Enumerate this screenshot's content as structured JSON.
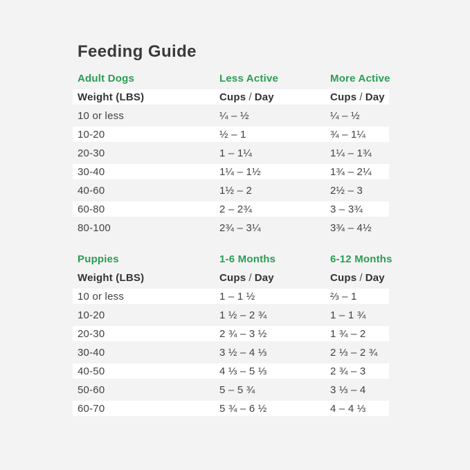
{
  "page": {
    "title": "Feeding Guide"
  },
  "labels": {
    "weight": "Weight (LBS)",
    "cups": "Cups",
    "slash": "/",
    "day": "Day"
  },
  "colors": {
    "accent_green": "#2a9d52",
    "title_text": "#3a3a3a",
    "body_text": "#414141",
    "page_background": "#f3f3f4",
    "stripe_white": "#ffffff"
  },
  "sections": [
    {
      "name": "Adult Dogs",
      "columns": [
        "Adult Dogs",
        "Less Active",
        "More Active"
      ],
      "rows": [
        [
          "10 or less",
          "¼ – ½",
          "¼ – ½"
        ],
        [
          "10-20",
          "½ – 1",
          "¾ – 1¼"
        ],
        [
          "20-30",
          "1 – 1¼",
          "1¼ – 1¾"
        ],
        [
          "30-40",
          "1¼ – 1½",
          "1¾ – 2¼"
        ],
        [
          "40-60",
          "1½ – 2",
          "2½ – 3"
        ],
        [
          "60-80",
          "2 – 2¾",
          "3 – 3¾"
        ],
        [
          "80-100",
          "2¾ – 3¼",
          "3¾ – 4½"
        ]
      ]
    },
    {
      "name": "Puppies",
      "columns": [
        "Puppies",
        "1-6 Months",
        "6-12 Months"
      ],
      "rows": [
        [
          "10 or less",
          "1 – 1 ½",
          "⅔ – 1"
        ],
        [
          "10-20",
          "1 ½ – 2 ¾",
          "1 – 1 ¾"
        ],
        [
          "20-30",
          "2 ¾ – 3 ½",
          "1 ¾ – 2"
        ],
        [
          "30-40",
          "3 ½ – 4 ⅓",
          "2 ⅓ – 2 ¾"
        ],
        [
          "40-50",
          "4 ⅓ – 5 ⅓",
          "2 ¾ – 3"
        ],
        [
          "50-60",
          "5 – 5 ¾",
          "3 ⅓ – 4"
        ],
        [
          "60-70",
          "5 ¾ – 6 ½",
          "4 – 4 ⅓"
        ]
      ]
    }
  ]
}
